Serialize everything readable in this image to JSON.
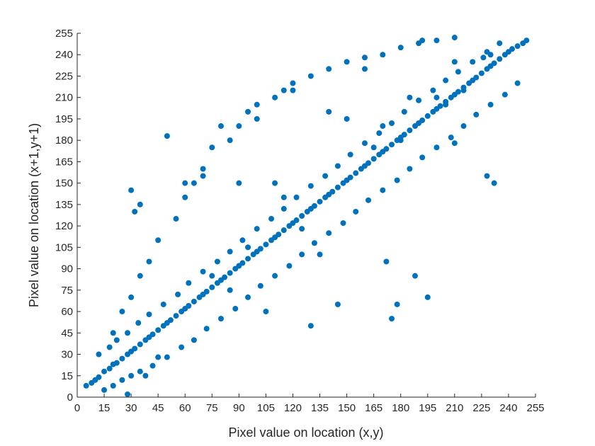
{
  "chart_data": {
    "type": "scatter",
    "xlabel": "Pixel value on location (x,y)",
    "ylabel": "Pixel value on location (x+1,y+1)",
    "xlim": [
      0,
      255
    ],
    "ylim": [
      0,
      255
    ],
    "xticks": [
      "0",
      "15",
      "30",
      "45",
      "60",
      "75",
      "90",
      "105",
      "120",
      "135",
      "150",
      "165",
      "180",
      "195",
      "210",
      "225",
      "240",
      "255"
    ],
    "yticks": [
      "0",
      "15",
      "30",
      "45",
      "60",
      "75",
      "90",
      "105",
      "120",
      "135",
      "150",
      "165",
      "180",
      "195",
      "210",
      "225",
      "240",
      "255"
    ],
    "grid": false,
    "marker_color": "#0072BD",
    "series": [
      {
        "points_x": [
          5,
          8,
          10,
          12,
          15,
          18,
          20,
          22,
          25,
          28,
          30,
          32,
          35,
          38,
          40,
          42,
          45,
          48,
          50,
          52,
          55,
          58,
          60,
          62,
          65,
          68,
          70,
          72,
          75,
          78,
          80,
          82,
          85,
          88,
          90,
          92,
          95,
          98,
          100,
          102,
          105,
          108,
          110,
          112,
          115,
          118,
          120,
          122,
          125,
          128,
          130,
          132,
          135,
          138,
          140,
          142,
          145,
          148,
          150,
          152,
          155,
          158,
          160,
          162,
          165,
          168,
          170,
          172,
          175,
          178,
          180,
          182,
          185,
          188,
          190,
          192,
          195,
          198,
          200,
          202,
          205,
          208,
          210,
          212,
          215,
          218,
          220,
          222,
          225,
          228,
          230,
          232,
          235,
          238,
          240,
          242,
          245,
          248,
          250,
          20,
          25,
          30,
          35,
          40,
          45,
          55,
          60,
          65,
          70,
          75,
          85,
          90,
          95,
          100,
          110,
          115,
          120,
          130,
          140,
          150,
          160,
          170,
          180,
          190,
          200,
          210,
          12,
          18,
          22,
          28,
          34,
          40,
          48,
          56,
          62,
          70,
          78,
          85,
          92,
          100,
          108,
          115,
          122,
          130,
          138,
          145,
          152,
          160,
          168,
          175,
          182,
          190,
          198,
          205,
          212,
          220,
          228,
          235,
          15,
          20,
          25,
          30,
          35,
          42,
          50,
          58,
          65,
          72,
          80,
          88,
          95,
          102,
          110,
          118,
          125,
          132,
          140,
          148,
          155,
          162,
          170,
          178,
          185,
          192,
          200,
          208,
          215,
          222,
          230,
          238,
          245,
          192,
          226,
          30,
          60,
          70,
          90,
          110,
          115,
          50,
          80,
          100,
          140,
          185,
          170,
          160,
          120,
          200,
          210,
          230,
          180,
          150,
          165,
          95,
          105,
          130,
          45,
          38,
          28,
          32,
          35,
          75,
          85,
          125,
          135,
          145,
          175,
          195,
          188,
          178,
          172,
          232,
          228,
          205,
          215,
          210
        ],
        "points_y": [
          8,
          10,
          12,
          14,
          18,
          20,
          23,
          24,
          27,
          30,
          32,
          34,
          37,
          40,
          42,
          44,
          47,
          50,
          52,
          54,
          57,
          60,
          62,
          64,
          67,
          70,
          72,
          74,
          77,
          80,
          82,
          84,
          87,
          90,
          92,
          94,
          97,
          100,
          102,
          104,
          107,
          110,
          112,
          114,
          117,
          120,
          122,
          124,
          127,
          130,
          132,
          134,
          137,
          140,
          142,
          144,
          147,
          150,
          152,
          154,
          157,
          160,
          162,
          164,
          167,
          170,
          172,
          174,
          177,
          180,
          182,
          184,
          187,
          190,
          192,
          194,
          197,
          200,
          202,
          204,
          207,
          210,
          212,
          214,
          217,
          220,
          222,
          224,
          227,
          230,
          232,
          234,
          237,
          240,
          242,
          244,
          246,
          248,
          250,
          45,
          60,
          70,
          85,
          95,
          110,
          125,
          140,
          150,
          160,
          175,
          180,
          190,
          200,
          205,
          210,
          215,
          220,
          225,
          230,
          235,
          238,
          240,
          245,
          248,
          250,
          252,
          30,
          35,
          40,
          45,
          52,
          58,
          65,
          72,
          80,
          88,
          95,
          102,
          110,
          118,
          125,
          132,
          140,
          148,
          155,
          162,
          170,
          178,
          185,
          192,
          200,
          208,
          215,
          222,
          228,
          235,
          242,
          248,
          5,
          8,
          12,
          15,
          18,
          22,
          28,
          35,
          40,
          48,
          55,
          62,
          70,
          78,
          85,
          92,
          100,
          108,
          115,
          122,
          130,
          138,
          145,
          152,
          160,
          168,
          175,
          182,
          190,
          198,
          205,
          212,
          220,
          250,
          238,
          145,
          150,
          155,
          150,
          150,
          140,
          183,
          190,
          195,
          200,
          210,
          190,
          230,
          215,
          210,
          235,
          240,
          180,
          195,
          175,
          105,
          60,
          50,
          28,
          15,
          2,
          130,
          135,
          85,
          75,
          118,
          100,
          65,
          55,
          70,
          85,
          65,
          95,
          150,
          155,
          205,
          215,
          178
        ]
      }
    ]
  }
}
